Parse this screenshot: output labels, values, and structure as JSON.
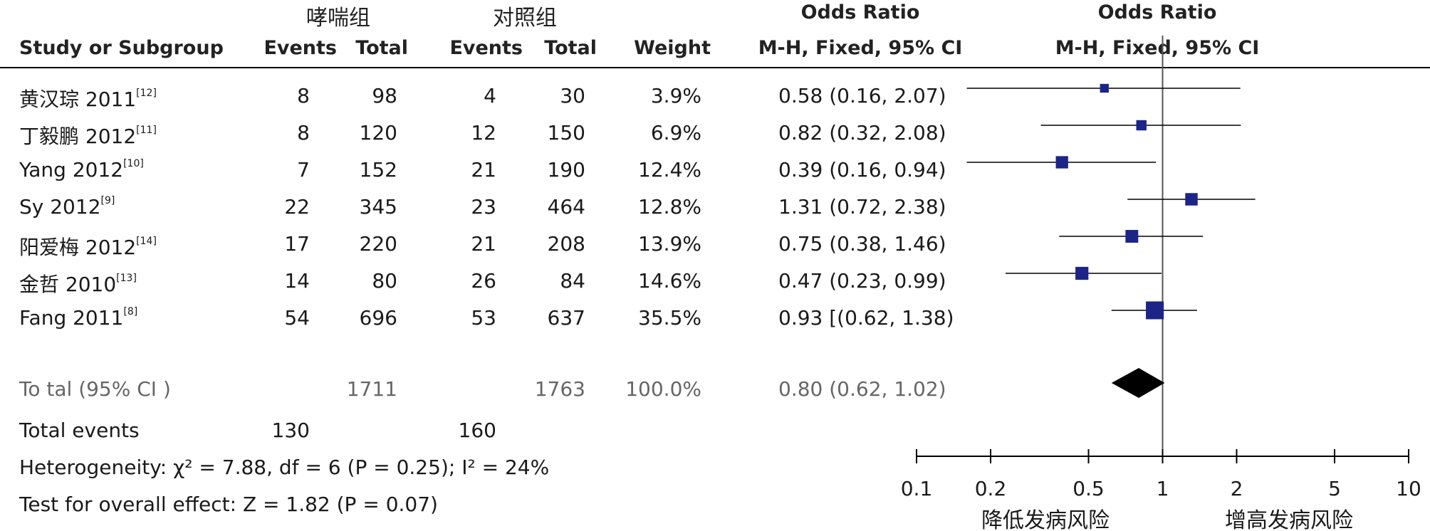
{
  "headers": {
    "group1": "哮喘组",
    "group2": "对照组",
    "or_table": "Odds Ratio",
    "or_plot": "Odds Ratio",
    "study": "Study or Subgroup",
    "events1": "Events",
    "total1": "Total",
    "events2": "Events",
    "total2": "Total",
    "weight": "Weight",
    "method_table": "M-H, Fixed, 95% CI",
    "method_plot": "M-H, Fixed, 95% CI"
  },
  "studies": [
    {
      "name": "黄汉琮 2011",
      "ref": "[12]",
      "events1": "8",
      "total1": "98",
      "events2": "4",
      "total2": "30",
      "weight": "3.9%",
      "ci_text": "0.58 (0.16, 2.07)"
    },
    {
      "name": "丁毅鹏 2012",
      "ref": "[11]",
      "events1": "8",
      "total1": "120",
      "events2": "12",
      "total2": "150",
      "weight": "6.9%",
      "ci_text": "0.82 (0.32, 2.08)"
    },
    {
      "name": "Yang 2012",
      "ref": "[10]",
      "events1": "7",
      "total1": "152",
      "events2": "21",
      "total2": "190",
      "weight": "12.4%",
      "ci_text": "0.39 (0.16, 0.94)"
    },
    {
      "name": "Sy 2012",
      "ref": "[9]",
      "events1": "22",
      "total1": "345",
      "events2": "23",
      "total2": "464",
      "weight": "12.8%",
      "ci_text": "1.31 (0.72, 2.38)"
    },
    {
      "name": "阳爱梅 2012",
      "ref": "[14]",
      "events1": "17",
      "total1": "220",
      "events2": "21",
      "total2": "208",
      "weight": "13.9%",
      "ci_text": "0.75 (0.38, 1.46)"
    },
    {
      "name": "金哲 2010",
      "ref": "[13]",
      "events1": "14",
      "total1": "80",
      "events2": "26",
      "total2": "84",
      "weight": "14.6%",
      "ci_text": "0.47 (0.23, 0.99)"
    },
    {
      "name": "Fang 2011",
      "ref": "[8]",
      "events1": "54",
      "total1": "696",
      "events2": "53",
      "total2": "637",
      "weight": "35.5%",
      "ci_text": "0.93 [(0.62, 1.38)"
    }
  ],
  "total": {
    "label": "To tal (95% CI )",
    "total1": "1711",
    "total2": "1763",
    "weight": "100.0%",
    "ci_text": "0.80 (0.62, 1.02)"
  },
  "total_events": {
    "label": "Total events",
    "events1": "130",
    "events2": "160"
  },
  "heterogeneity": "Heterogeneity: χ² = 7.88, df = 6 (P = 0.25); I² = 24%",
  "overall_effect": "Test for overall effect: Z = 1.82 (P = 0.07)",
  "axis": {
    "favours_left": "降低发病风险",
    "favours_right": "增高发病风险"
  },
  "chart_data": {
    "type": "forest",
    "title": "Odds Ratio",
    "subtitle": "M-H, Fixed, 95% CI",
    "x_scale": "log",
    "xlim": [
      0.1,
      10
    ],
    "ticks": [
      0.1,
      0.2,
      0.5,
      1,
      2,
      5,
      10
    ],
    "tick_labels": [
      "0.1",
      "0.2",
      "0.5",
      "1",
      "2",
      "5",
      "10"
    ],
    "reference_line": 1,
    "colors": {
      "marker": "#1c2488",
      "summary": "#000000",
      "line": "#000000"
    },
    "studies": [
      {
        "or": 0.58,
        "lower": 0.16,
        "upper": 2.07,
        "weight": 3.9
      },
      {
        "or": 0.82,
        "lower": 0.32,
        "upper": 2.08,
        "weight": 6.9
      },
      {
        "or": 0.39,
        "lower": 0.16,
        "upper": 0.94,
        "weight": 12.4
      },
      {
        "or": 1.31,
        "lower": 0.72,
        "upper": 2.38,
        "weight": 12.8
      },
      {
        "or": 0.75,
        "lower": 0.38,
        "upper": 1.46,
        "weight": 13.9
      },
      {
        "or": 0.47,
        "lower": 0.23,
        "upper": 0.99,
        "weight": 14.6
      },
      {
        "or": 0.93,
        "lower": 0.62,
        "upper": 1.38,
        "weight": 35.5
      }
    ],
    "summary": {
      "or": 0.8,
      "lower": 0.62,
      "upper": 1.02
    }
  }
}
